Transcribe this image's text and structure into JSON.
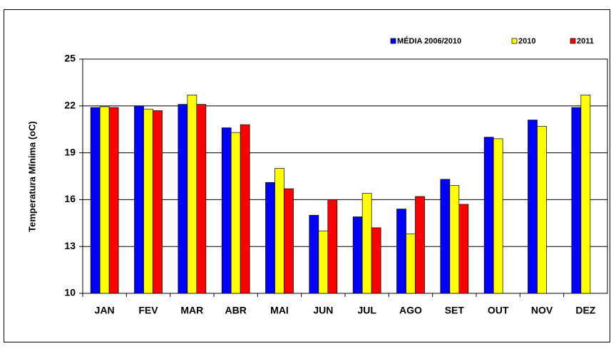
{
  "chart_data": {
    "type": "bar",
    "y_label": "Temperatura Mínima (oC)",
    "categories": [
      "JAN",
      "FEV",
      "MAR",
      "ABR",
      "MAI",
      "JUN",
      "JUL",
      "AGO",
      "SET",
      "OUT",
      "NOV",
      "DEZ"
    ],
    "series": [
      {
        "name": "MÉDIA 2006/2010",
        "color": "#0000ff",
        "values": [
          21.9,
          22.0,
          22.1,
          20.6,
          17.1,
          15.0,
          14.9,
          15.4,
          17.3,
          20.0,
          21.1,
          21.9
        ]
      },
      {
        "name": "2010",
        "color": "#ffff00",
        "values": [
          21.95,
          21.8,
          22.7,
          20.3,
          18.0,
          14.0,
          16.4,
          13.8,
          16.9,
          19.9,
          20.7,
          22.7
        ]
      },
      {
        "name": "2011",
        "color": "#ff0000",
        "values": [
          21.9,
          21.7,
          22.1,
          20.8,
          16.7,
          16.0,
          14.2,
          16.2,
          15.7,
          null,
          null,
          null
        ]
      }
    ],
    "ylim": [
      10,
      25
    ],
    "yticks": [
      10,
      13,
      16,
      19,
      22,
      25
    ],
    "grid": true,
    "legend": "top-right"
  }
}
